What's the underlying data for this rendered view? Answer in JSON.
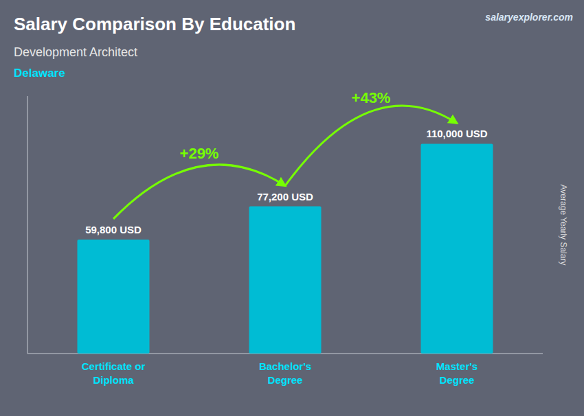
{
  "chart_data": {
    "type": "bar",
    "title": "Salary Comparison By Education",
    "subtitle": [
      "Development Architect",
      "Delaware"
    ],
    "ylabel": "Average Yearly Salary",
    "categories": [
      "Certificate or\nDiploma",
      "Bachelor's\nDegree",
      "Master's\nDegree"
    ],
    "values": [
      59800,
      77200,
      110000
    ],
    "value_labels": [
      "59,800 USD",
      "77,200 USD",
      "110,000 USD"
    ],
    "data_labels": true,
    "annotations": [
      "+29%",
      "+43%",
      "salaryexplorer.com"
    ],
    "color": "#00BCD4",
    "ylim": [
      0,
      135000
    ],
    "tick_labels": "x"
  }
}
